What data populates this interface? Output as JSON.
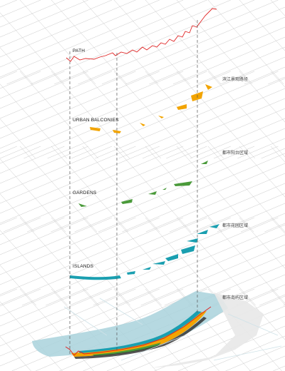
{
  "layers": [
    {
      "id": "path",
      "label": "PATH",
      "cn_label": "滨江景观路径",
      "color": "#e02424"
    },
    {
      "id": "balcony",
      "label": "URBAN BALCONIES",
      "cn_label": "都市阳台区域",
      "color": "#f2a400"
    },
    {
      "id": "gardens",
      "label": "GARDENS",
      "cn_label": "都市花园区域",
      "color": "#4a9a3a"
    },
    {
      "id": "islands",
      "label": "ISLANDS",
      "cn_label": "都市岛屿区域",
      "color": "#1a9fb0"
    }
  ],
  "colors": {
    "grid": "#c9c9c9",
    "guide": "#555555",
    "water": "#a9d2dc",
    "base_map": "#e8e8e8"
  }
}
